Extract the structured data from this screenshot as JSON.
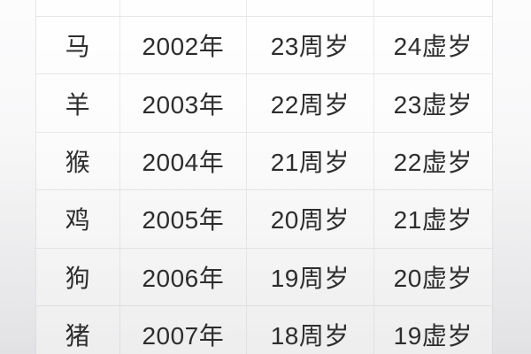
{
  "colors": {
    "text": "#2d2d2d",
    "border": "#e6e6e8",
    "cell_background": "#fcfcfd",
    "page_background_top": "#fcfcfd",
    "page_background_bottom": "#ececee"
  },
  "table": {
    "rows": [
      {
        "zodiac": "马",
        "year": "2002年",
        "full_age": "23周岁",
        "nominal_age": "24虚岁"
      },
      {
        "zodiac": "羊",
        "year": "2003年",
        "full_age": "22周岁",
        "nominal_age": "23虚岁"
      },
      {
        "zodiac": "猴",
        "year": "2004年",
        "full_age": "21周岁",
        "nominal_age": "22虚岁"
      },
      {
        "zodiac": "鸡",
        "year": "2005年",
        "full_age": "20周岁",
        "nominal_age": "21虚岁"
      },
      {
        "zodiac": "狗",
        "year": "2006年",
        "full_age": "19周岁",
        "nominal_age": "20虚岁"
      },
      {
        "zodiac": "猪",
        "year": "2007年",
        "full_age": "18周岁",
        "nominal_age": "19虚岁"
      }
    ]
  }
}
